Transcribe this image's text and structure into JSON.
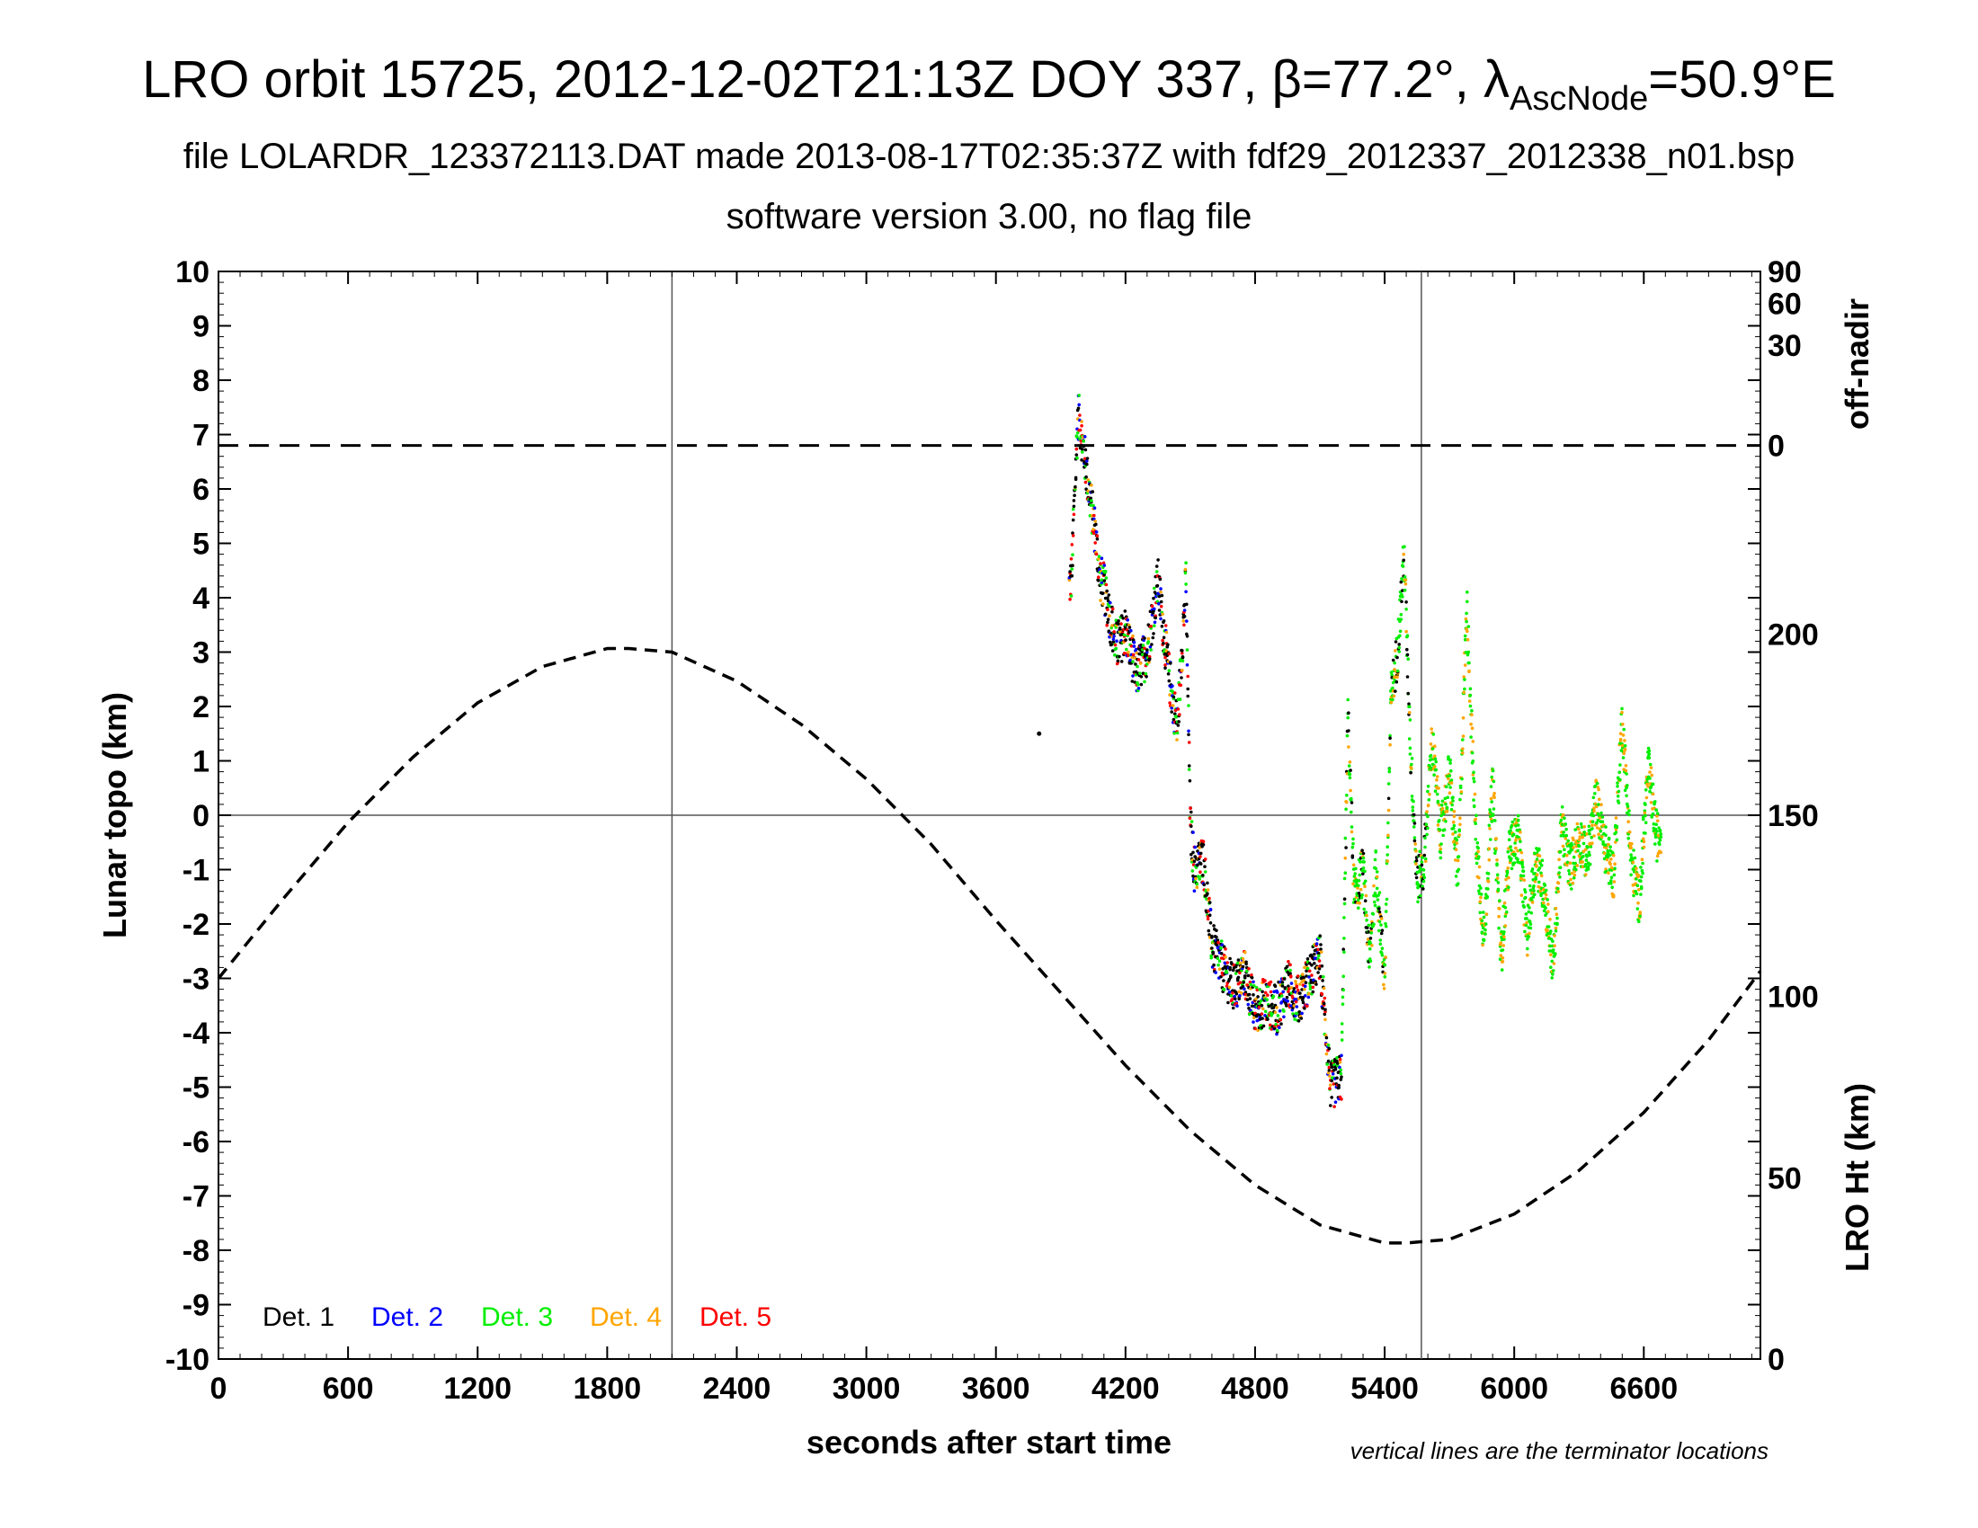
{
  "title_parts": {
    "main": "LRO orbit 15725, 2012-12-02T21:13Z DOY 337, β=77.2°, λ",
    "sub": "AscNode",
    "end": "=50.9°E"
  },
  "subtitle1": "file LOLARDR_123372113.DAT made 2013-08-17T02:35:37Z with fdf29_2012337_2012338_n01.bsp",
  "subtitle2": "software version 3.00, no flag file",
  "note": "vertical lines are the terminator locations",
  "colors": {
    "det1": "#000000",
    "det2": "#0000ff",
    "det3": "#00ee00",
    "det4": "#ffa500",
    "det5": "#ff0000"
  },
  "chart_data": {
    "type": "scatter",
    "xlabel": "seconds after start time",
    "ylabel": "Lunar topo (km)",
    "y2label_top": "off-nadir",
    "y2label_bottom": "LRO Ht (km)",
    "xlim": [
      0,
      7140
    ],
    "ylim": [
      -10,
      10
    ],
    "x_ticks": [
      "0",
      "600",
      "1200",
      "1800",
      "2400",
      "3000",
      "3600",
      "4200",
      "4800",
      "5400",
      "6000",
      "6600"
    ],
    "y_ticks": [
      "10",
      "9",
      "8",
      "7",
      "6",
      "5",
      "4",
      "3",
      "2",
      "1",
      "0",
      "-1",
      "-2",
      "-3",
      "-4",
      "-5",
      "-6",
      "-7",
      "-8",
      "-9",
      "-10"
    ],
    "offnadir_ticks": [
      "90",
      "60",
      "30",
      "0"
    ],
    "ht_ticks": [
      "200",
      "150",
      "100",
      "50",
      "0"
    ],
    "terminators_s": [
      2100,
      5570
    ],
    "off_nadir_deg": 0,
    "legend": [
      "Det. 1",
      "Det. 2",
      "Det. 3",
      "Det. 4",
      "Det. 5"
    ],
    "lro_height_km": {
      "x": [
        0,
        300,
        600,
        900,
        1200,
        1500,
        1800,
        1900,
        2100,
        2400,
        2700,
        3000,
        3300,
        3600,
        3900,
        4200,
        4500,
        4800,
        5100,
        5400,
        5500,
        5700,
        6000,
        6300,
        6600,
        6900,
        7140
      ],
      "y": [
        105,
        127,
        148,
        166,
        181,
        191,
        196,
        196,
        195,
        187,
        175,
        160,
        142,
        121,
        101,
        81,
        63,
        48,
        37,
        32,
        32,
        33,
        40,
        52,
        68,
        88,
        107
      ]
    },
    "topo_profile_km": {
      "x": [
        3800,
        3950,
        3980,
        4000,
        4030,
        4060,
        4080,
        4100,
        4130,
        4160,
        4200,
        4250,
        4300,
        4350,
        4400,
        4440,
        4480,
        4500,
        4520,
        4560,
        4600,
        4650,
        4700,
        4750,
        4800,
        4850,
        4900,
        4950,
        5000,
        5050,
        5100,
        5150,
        5200,
        5230,
        5260,
        5300,
        5330,
        5360,
        5400,
        5430,
        5460,
        5490,
        5520,
        5550,
        5580,
        5620,
        5660,
        5700,
        5740,
        5780,
        5820,
        5860,
        5900,
        5940,
        5980,
        6020,
        6060,
        6100,
        6140,
        6180,
        6220,
        6260,
        6300,
        6340,
        6380,
        6420,
        6460,
        6500,
        6540,
        6580,
        6620,
        6660,
        6680
      ],
      "y": [
        1.5,
        4.4,
        7.4,
        6.9,
        6.0,
        5.2,
        4.4,
        4.2,
        3.6,
        3.1,
        3.4,
        2.6,
        3.0,
        4.3,
        2.6,
        1.6,
        4.3,
        -0.2,
        -1.0,
        -0.8,
        -2.4,
        -2.8,
        -3.2,
        -2.9,
        -3.6,
        -3.4,
        -3.6,
        -3.1,
        -3.4,
        -3.0,
        -2.6,
        -5.0,
        -4.8,
        1.8,
        -1.5,
        -1.0,
        -2.7,
        -1.0,
        -3.0,
        2.2,
        3.0,
        4.8,
        1.2,
        -1.2,
        -1.0,
        1.4,
        -0.4,
        0.8,
        -1.2,
        3.9,
        -0.2,
        -2.3,
        0.6,
        -2.6,
        -0.6,
        -0.4,
        -2.2,
        -0.8,
        -1.4,
        -2.8,
        -0.2,
        -1.0,
        -0.4,
        -0.8,
        0.3,
        -0.6,
        -1.1,
        1.8,
        -0.8,
        -1.6,
        0.9,
        -0.4,
        -0.3
      ]
    }
  }
}
